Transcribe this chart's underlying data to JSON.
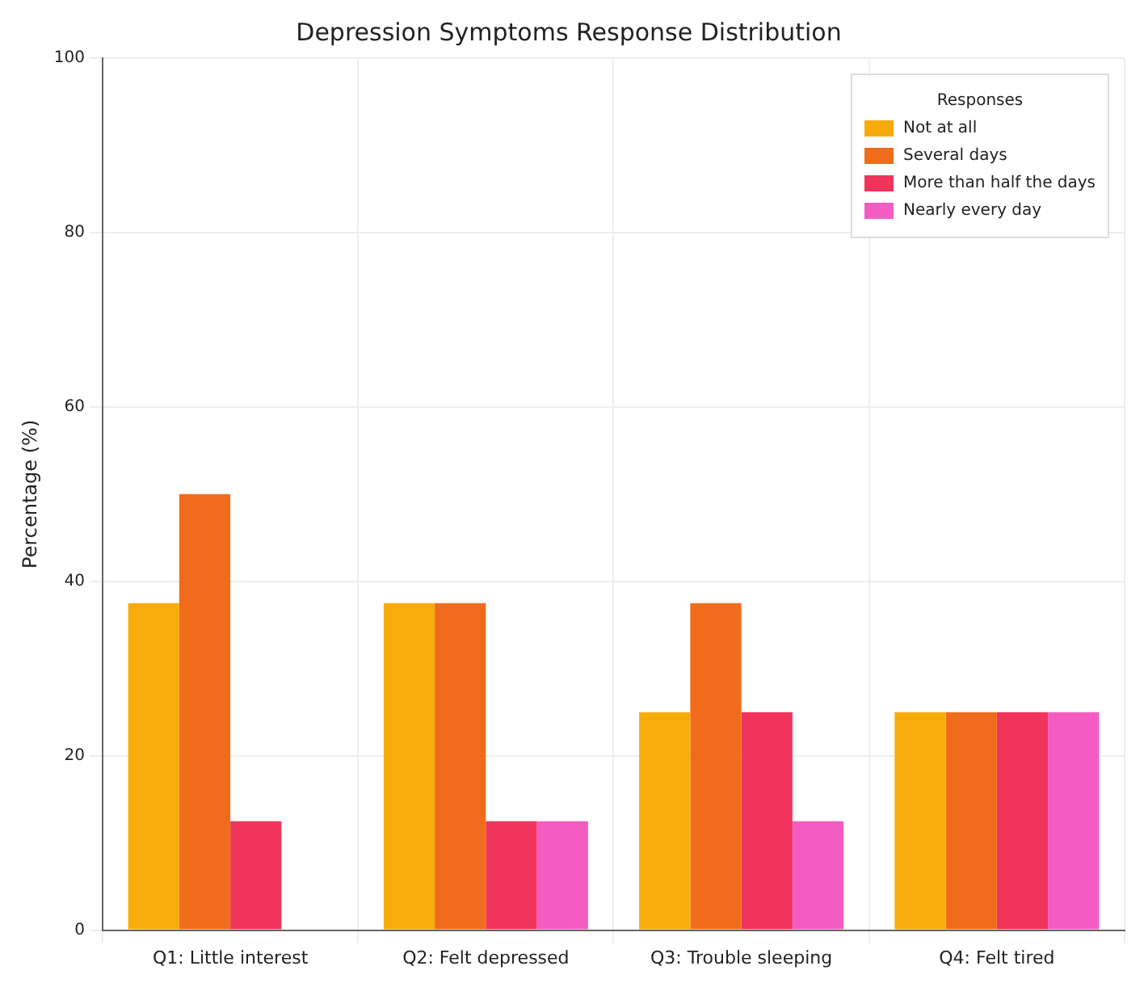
{
  "chart_data": {
    "type": "bar",
    "title": "Depression Symptoms Response Distribution",
    "ylabel": "Percentage (%)",
    "legend_title": "Responses",
    "categories": [
      "Q1: Little interest",
      "Q2: Felt depressed",
      "Q3: Trouble sleeping",
      "Q4: Felt tired"
    ],
    "series": [
      {
        "name": "Not at all",
        "color": "#f8ac0c",
        "values": [
          37.5,
          37.5,
          25,
          25
        ]
      },
      {
        "name": "Several days",
        "color": "#f06c1c",
        "values": [
          50,
          37.5,
          37.5,
          25
        ]
      },
      {
        "name": "More than half the days",
        "color": "#f0345c",
        "values": [
          12.5,
          12.5,
          25,
          25
        ]
      },
      {
        "name": "Nearly every day",
        "color": "#f45cc4",
        "values": [
          0,
          12.5,
          12.5,
          25
        ]
      }
    ],
    "ylim": [
      0,
      100
    ],
    "yticks": [
      0,
      20,
      40,
      60,
      80,
      100
    ],
    "grid": true,
    "legend": "top right"
  }
}
